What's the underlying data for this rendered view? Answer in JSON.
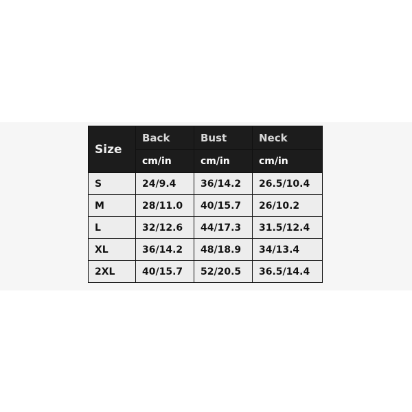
{
  "table": {
    "size_header": "Size",
    "columns": [
      "Back",
      "Bust",
      "Neck"
    ],
    "unit": "cm/in",
    "rows": [
      {
        "size": "S",
        "values": [
          "24/9.4",
          "36/14.2",
          "26.5/10.4"
        ]
      },
      {
        "size": "M",
        "values": [
          "28/11.0",
          "40/15.7",
          "26/10.2"
        ]
      },
      {
        "size": "L",
        "values": [
          "32/12.6",
          "44/17.3",
          "31.5/12.4"
        ]
      },
      {
        "size": "XL",
        "values": [
          "36/14.2",
          "48/18.9",
          "34/13.4"
        ]
      },
      {
        "size": "2XL",
        "values": [
          "40/15.7",
          "52/20.5",
          "36.5/14.4"
        ]
      }
    ]
  },
  "colors": {
    "header_bg": "#1c1c1c",
    "cell_bg": "#ededed",
    "band_bg": "#f6f6f6"
  }
}
